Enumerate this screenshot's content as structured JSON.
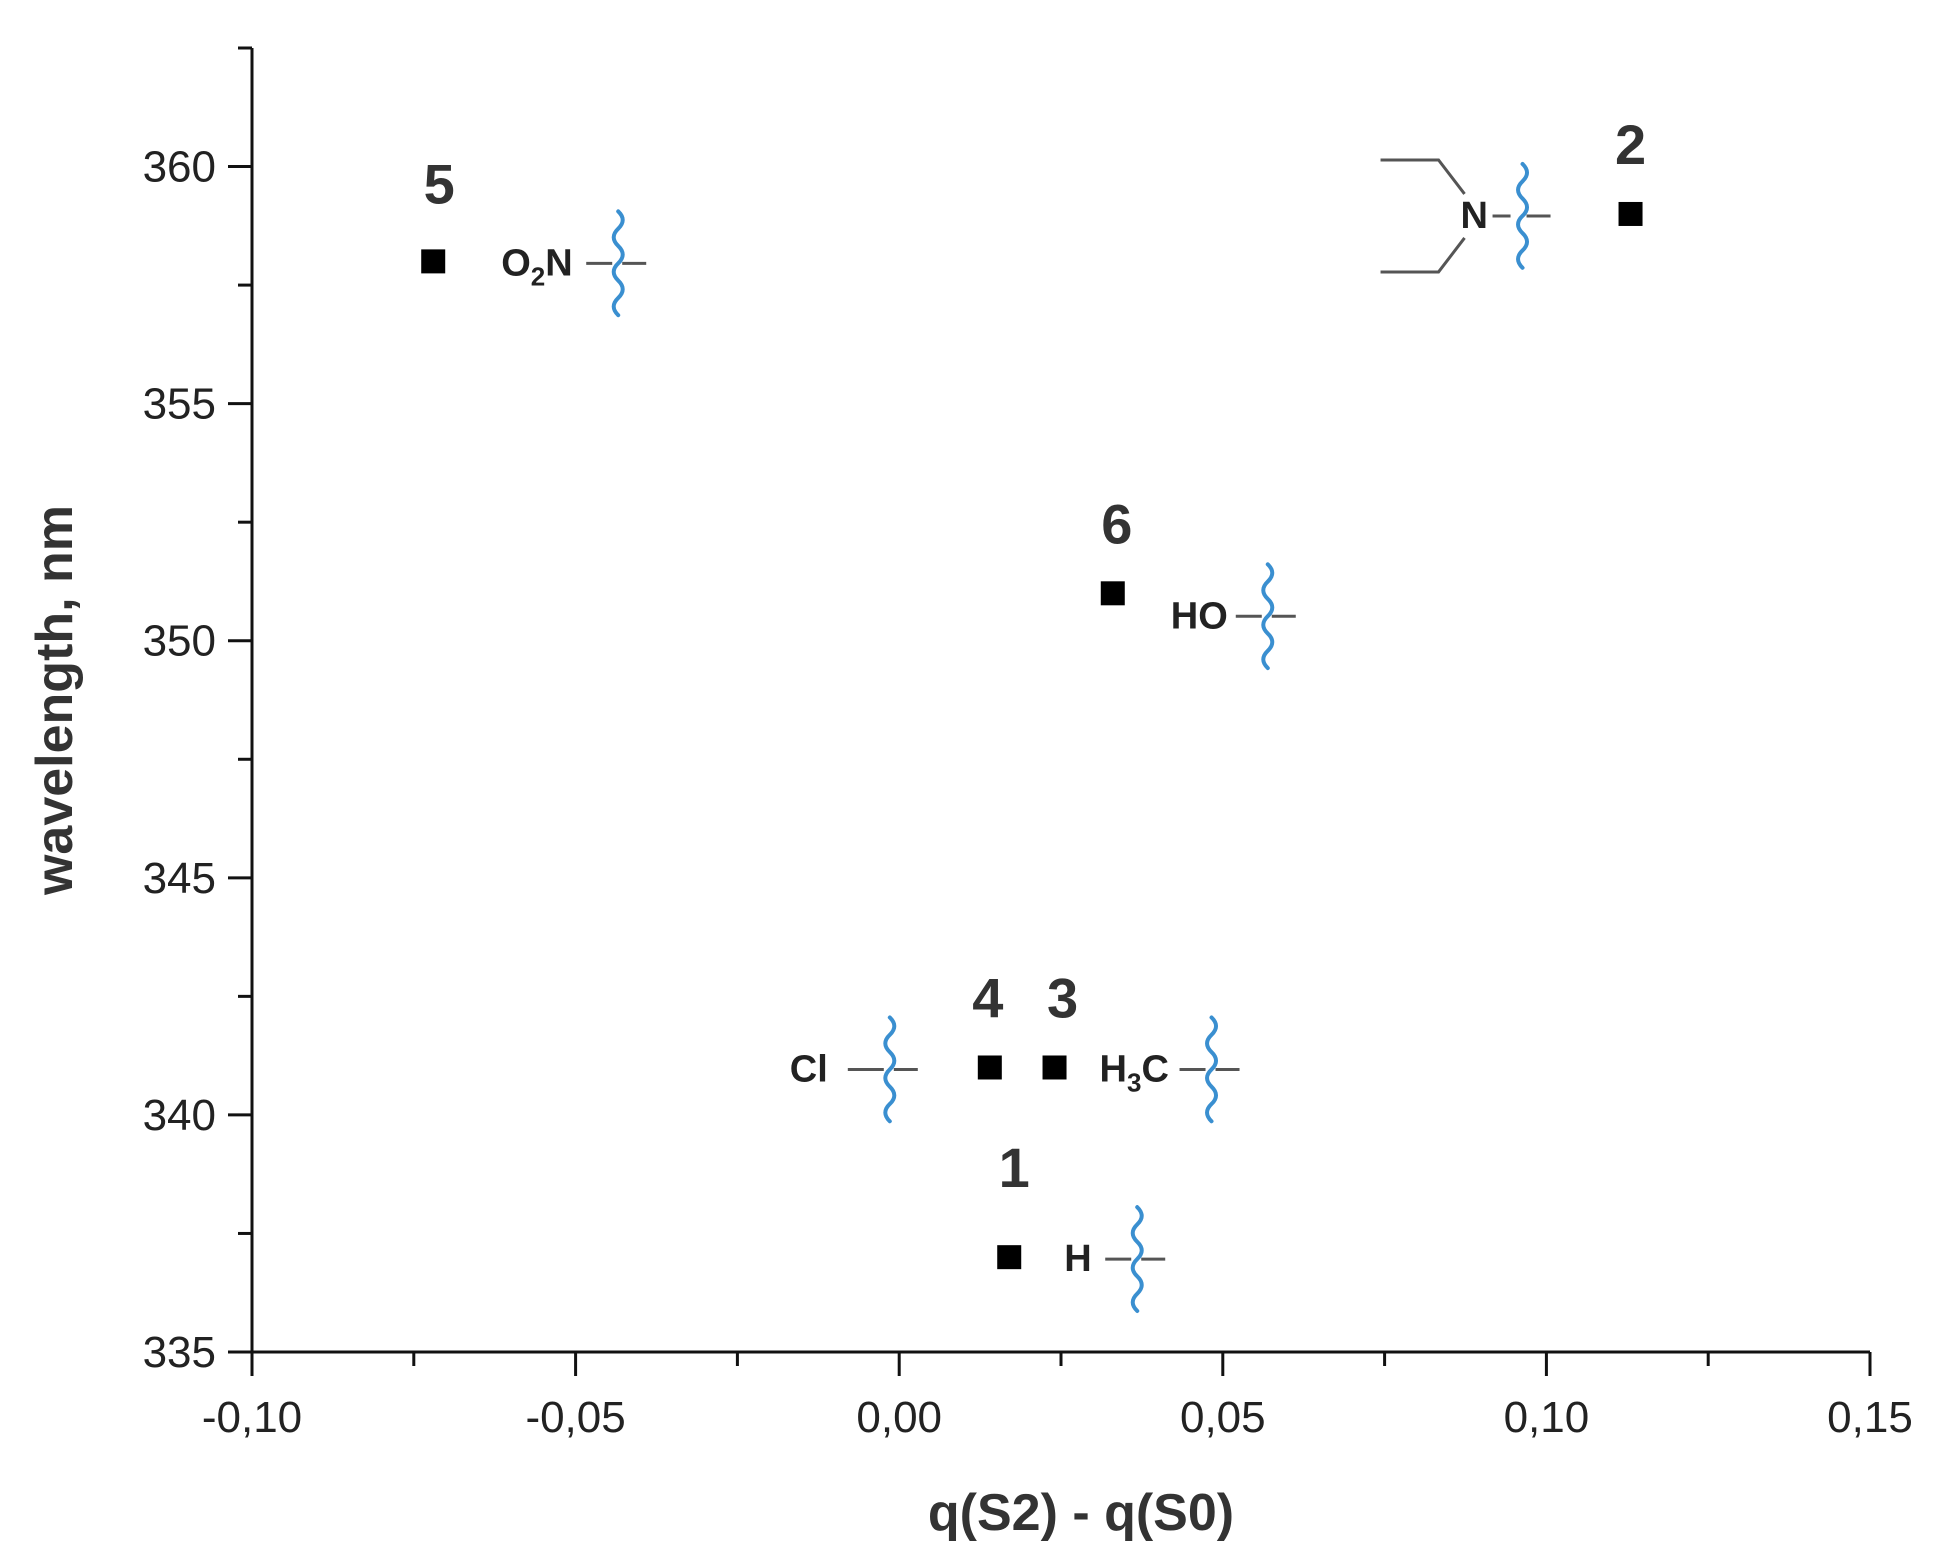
{
  "chart_data": {
    "type": "scatter",
    "xlabel": "q(S2)  - q(S0)",
    "ylabel": "wavelength, nm",
    "xlim": [
      -0.1,
      0.15
    ],
    "ylim": [
      335,
      362.5
    ],
    "x_ticks": [
      -0.1,
      -0.05,
      0.0,
      0.05,
      0.1,
      0.15
    ],
    "x_tick_labels": [
      "-0,10",
      "-0,05",
      "0,00",
      "0,05",
      "0,10",
      "0,15"
    ],
    "y_ticks": [
      335,
      340,
      345,
      350,
      355,
      360
    ],
    "y_tick_labels": [
      "335",
      "340",
      "345",
      "350",
      "355",
      "360"
    ],
    "grid": false,
    "points": [
      {
        "label": "1",
        "x": 0.017,
        "y": 337,
        "substituent": "H",
        "sub_script": ""
      },
      {
        "label": "2",
        "x": 0.113,
        "y": 359,
        "substituent": "N",
        "sub_script": ""
      },
      {
        "label": "3",
        "x": 0.024,
        "y": 341,
        "substituent": "H",
        "sub_script": "3",
        "substituent_tail": "C"
      },
      {
        "label": "4",
        "x": 0.014,
        "y": 341,
        "substituent": "Cl",
        "sub_script": ""
      },
      {
        "label": "5",
        "x": -0.072,
        "y": 358,
        "substituent": "O",
        "sub_script": "2",
        "substituent_tail": "N"
      },
      {
        "label": "6",
        "x": 0.033,
        "y": 351,
        "substituent": "HO",
        "sub_script": ""
      }
    ]
  },
  "colors": {
    "marker": "#000000",
    "squiggle": "#3a8fd0",
    "text": "#333333"
  }
}
